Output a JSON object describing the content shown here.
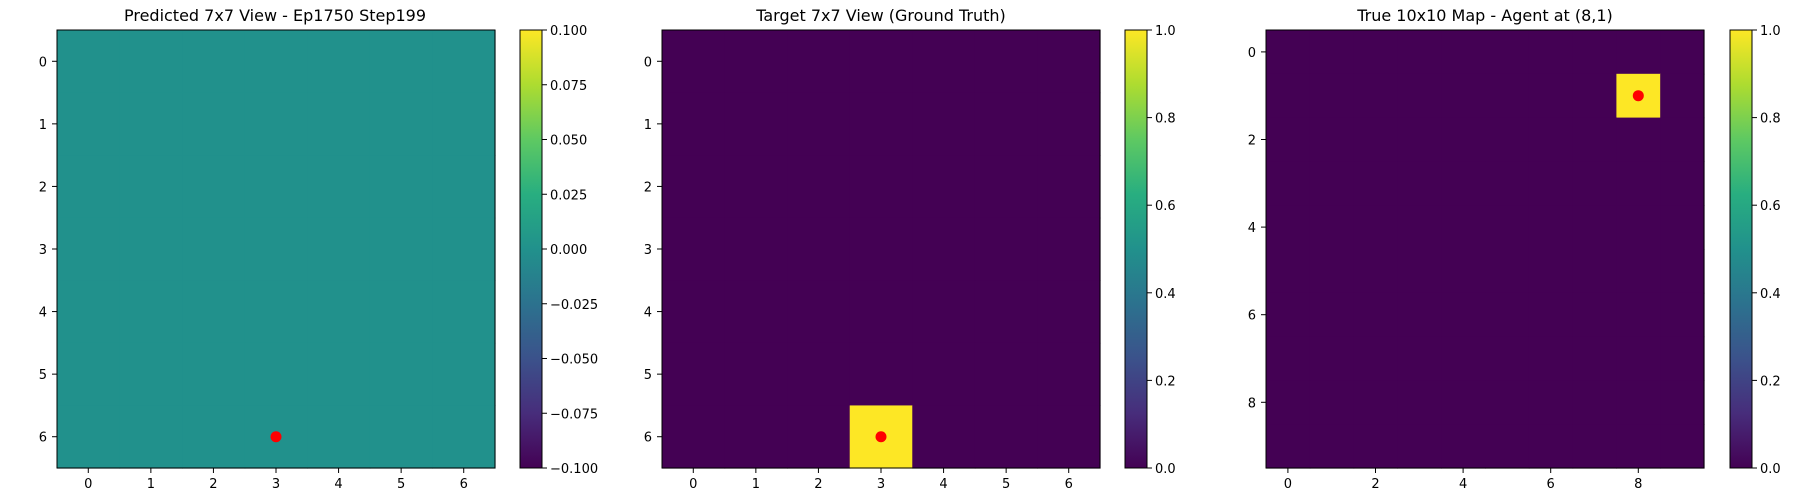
{
  "chart_data": [
    {
      "type": "heatmap",
      "title": "Predicted 7x7 View - Ep1750 Step199",
      "rows": 7,
      "cols": 7,
      "xticks": [
        0,
        1,
        2,
        3,
        4,
        5,
        6
      ],
      "yticks": [
        0,
        1,
        2,
        3,
        4,
        5,
        6
      ],
      "values": [
        [
          0,
          0,
          0,
          0,
          0,
          0,
          0
        ],
        [
          0,
          0,
          0,
          0,
          0,
          0,
          0
        ],
        [
          0,
          0,
          0,
          0,
          0,
          0,
          0
        ],
        [
          0,
          0,
          0,
          0,
          0,
          0,
          0
        ],
        [
          0,
          0,
          0,
          0,
          0,
          0,
          0
        ],
        [
          0,
          0,
          0,
          0,
          0,
          0,
          0
        ],
        [
          0,
          0,
          0,
          0,
          0,
          0,
          0
        ]
      ],
      "vmin": -0.1,
      "vmax": 0.1,
      "colorbar_ticks": [
        0.1,
        0.075,
        0.05,
        0.025,
        0.0,
        -0.025,
        -0.05,
        -0.075,
        -0.1
      ],
      "colorbar_labels": [
        "0.100",
        "0.075",
        "0.050",
        "0.025",
        "0.000",
        "−0.025",
        "−0.050",
        "−0.075",
        "−0.100"
      ],
      "marker": {
        "x": 3,
        "y": 6,
        "color": "#ff0000"
      },
      "colormap": "viridis"
    },
    {
      "type": "heatmap",
      "title": "Target 7x7 View (Ground Truth)",
      "rows": 7,
      "cols": 7,
      "xticks": [
        0,
        1,
        2,
        3,
        4,
        5,
        6
      ],
      "yticks": [
        0,
        1,
        2,
        3,
        4,
        5,
        6
      ],
      "values": [
        [
          0,
          0,
          0,
          0,
          0,
          0,
          0
        ],
        [
          0,
          0,
          0,
          0,
          0,
          0,
          0
        ],
        [
          0,
          0,
          0,
          0,
          0,
          0,
          0
        ],
        [
          0,
          0,
          0,
          0,
          0,
          0,
          0
        ],
        [
          0,
          0,
          0,
          0,
          0,
          0,
          0
        ],
        [
          0,
          0,
          0,
          0,
          0,
          0,
          0
        ],
        [
          0,
          0,
          0,
          1,
          0,
          0,
          0
        ]
      ],
      "vmin": 0.0,
      "vmax": 1.0,
      "colorbar_ticks": [
        1.0,
        0.8,
        0.6,
        0.4,
        0.2,
        0.0
      ],
      "colorbar_labels": [
        "1.0",
        "0.8",
        "0.6",
        "0.4",
        "0.2",
        "0.0"
      ],
      "marker": {
        "x": 3,
        "y": 6,
        "color": "#ff0000"
      },
      "colormap": "viridis"
    },
    {
      "type": "heatmap",
      "title": "True 10x10 Map - Agent at (8,1)",
      "rows": 10,
      "cols": 10,
      "xticks": [
        0,
        2,
        4,
        6,
        8
      ],
      "yticks": [
        0,
        2,
        4,
        6,
        8
      ],
      "values": [
        [
          0,
          0,
          0,
          0,
          0,
          0,
          0,
          0,
          0,
          0
        ],
        [
          0,
          0,
          0,
          0,
          0,
          0,
          0,
          0,
          1,
          0
        ],
        [
          0,
          0,
          0,
          0,
          0,
          0,
          0,
          0,
          0,
          0
        ],
        [
          0,
          0,
          0,
          0,
          0,
          0,
          0,
          0,
          0,
          0
        ],
        [
          0,
          0,
          0,
          0,
          0,
          0,
          0,
          0,
          0,
          0
        ],
        [
          0,
          0,
          0,
          0,
          0,
          0,
          0,
          0,
          0,
          0
        ],
        [
          0,
          0,
          0,
          0,
          0,
          0,
          0,
          0,
          0,
          0
        ],
        [
          0,
          0,
          0,
          0,
          0,
          0,
          0,
          0,
          0,
          0
        ],
        [
          0,
          0,
          0,
          0,
          0,
          0,
          0,
          0,
          0,
          0
        ],
        [
          0,
          0,
          0,
          0,
          0,
          0,
          0,
          0,
          0,
          0
        ]
      ],
      "vmin": 0.0,
      "vmax": 1.0,
      "colorbar_ticks": [
        1.0,
        0.8,
        0.6,
        0.4,
        0.2,
        0.0
      ],
      "colorbar_labels": [
        "1.0",
        "0.8",
        "0.6",
        "0.4",
        "0.2",
        "0.0"
      ],
      "marker": {
        "x": 8,
        "y": 1,
        "color": "#ff0000"
      },
      "colormap": "viridis"
    }
  ]
}
